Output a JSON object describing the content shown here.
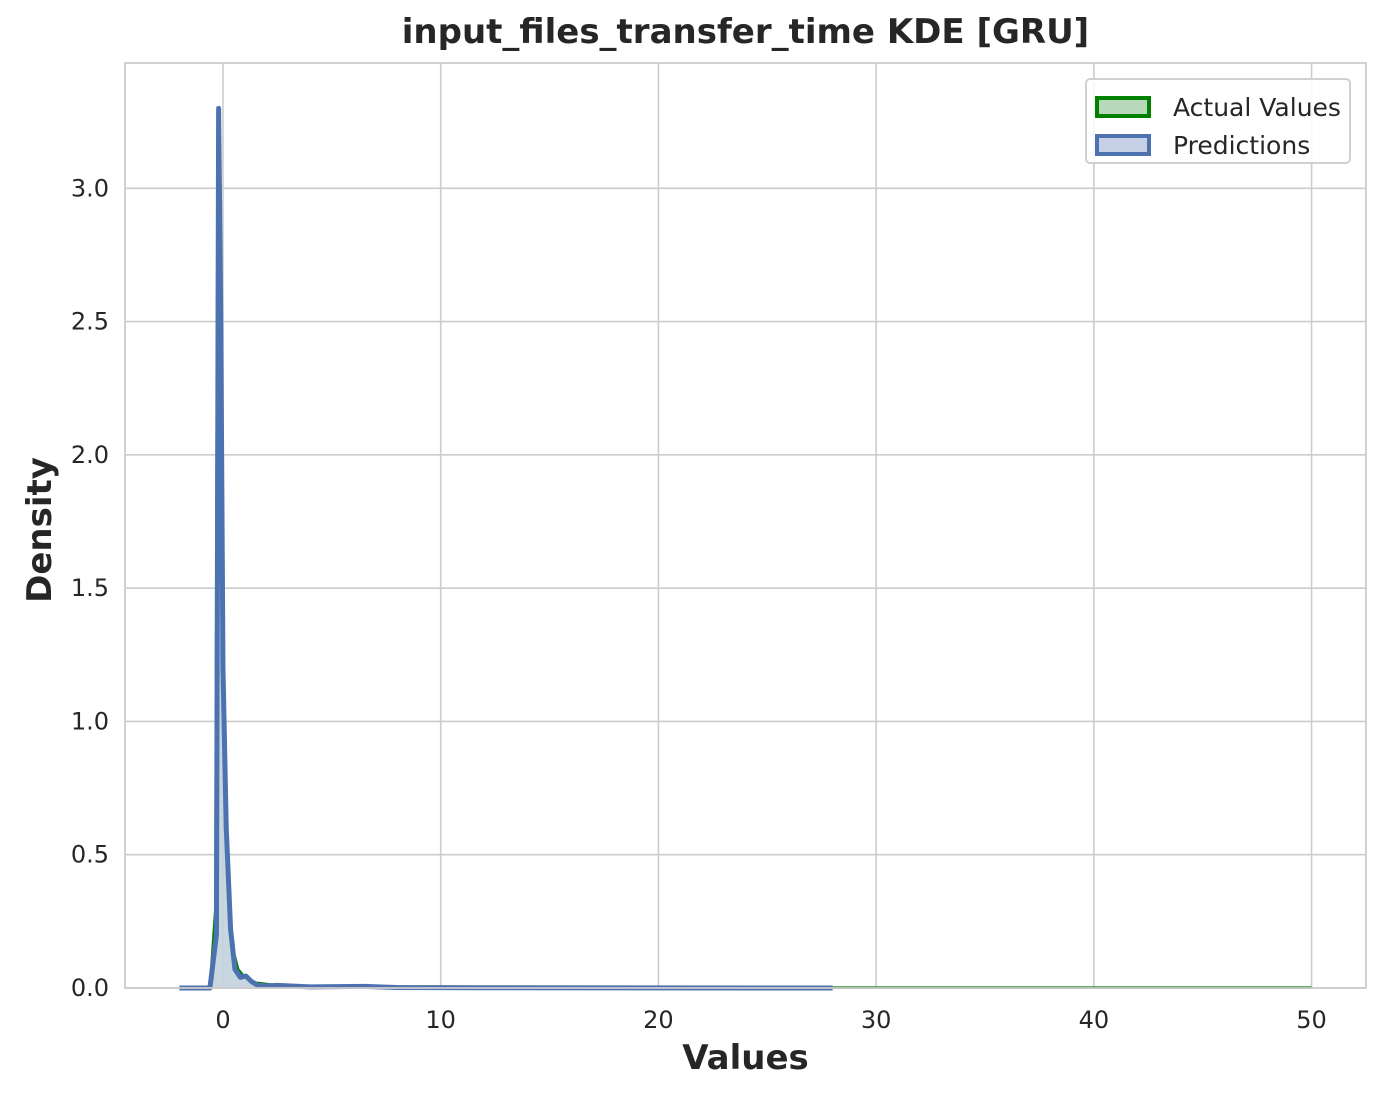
{
  "chart_data": {
    "type": "area",
    "title": "input_files_transfer_time KDE [GRU]",
    "xlabel": "Values",
    "ylabel": "Density",
    "xlim": [
      -4.5,
      52.5
    ],
    "ylim": [
      0,
      3.47
    ],
    "xticks": [
      0,
      10,
      20,
      30,
      40,
      50
    ],
    "xtick_labels": [
      "0",
      "10",
      "20",
      "30",
      "40",
      "50"
    ],
    "yticks": [
      0.0,
      0.5,
      1.0,
      1.5,
      2.0,
      2.5,
      3.0
    ],
    "ytick_labels": [
      "0.0",
      "0.5",
      "1.0",
      "1.5",
      "2.0",
      "2.5",
      "3.0"
    ],
    "grid": true,
    "legend_position": "top-right",
    "series": [
      {
        "name": "Actual Values",
        "color": "#008000",
        "fill": "#b8d8bc",
        "x": [
          -2,
          -0.6,
          -0.35,
          -0.25,
          -0.15,
          0.05,
          0.25,
          0.45,
          0.7,
          1.0,
          1.5,
          2.5,
          5,
          10,
          20,
          28,
          35,
          40,
          50
        ],
        "y": [
          0,
          0,
          0.3,
          3.1,
          2.2,
          1.0,
          0.4,
          0.15,
          0.07,
          0.04,
          0.02,
          0.01,
          0.004,
          0.002,
          0.001,
          0.0015,
          0.0015,
          0.0015,
          0.0015
        ]
      },
      {
        "name": "Predictions",
        "color": "#4c72b0",
        "fill": "#c5d0e6",
        "x": [
          -2,
          -0.6,
          -0.3,
          -0.2,
          -0.1,
          0,
          0.15,
          0.35,
          0.55,
          0.8,
          1.05,
          1.3,
          1.6,
          2.0,
          2.5,
          3.0,
          4.0,
          6.5,
          8,
          12,
          28
        ],
        "y": [
          0,
          0,
          0.2,
          3.3,
          2.5,
          1.2,
          0.6,
          0.22,
          0.07,
          0.04,
          0.045,
          0.025,
          0.01,
          0.008,
          0.01,
          0.008,
          0.004,
          0.006,
          0.002,
          0.001,
          0
        ]
      }
    ]
  }
}
